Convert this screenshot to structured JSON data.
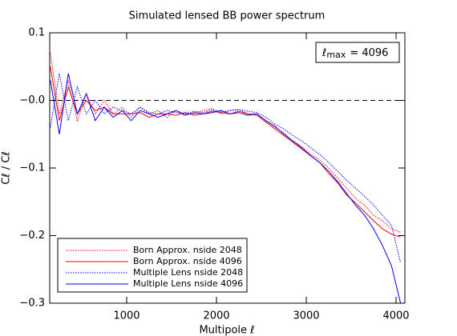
{
  "chart_data": {
    "type": "line",
    "title": "Simulated lensed BB power spectrum",
    "xlabel": "Multipole ℓ",
    "ylabel": "Cℓ / Cℓ",
    "annotation": {
      "symbol": "ℓ",
      "subscript": "max",
      "text": "= 4096"
    },
    "reference_line": 0,
    "xlim": [
      143,
      4098
    ],
    "ylim": [
      -0.3,
      0.1
    ],
    "xticks": [
      1000,
      2000,
      3000,
      4000
    ],
    "yticks": [
      {
        "value": 0.1,
        "label": "0.1"
      },
      {
        "value": 0,
        "label": "−0.0"
      },
      {
        "value": -0.1,
        "label": "−0.1"
      },
      {
        "value": -0.2,
        "label": "−0.2"
      },
      {
        "value": -0.3,
        "label": "−0.3"
      }
    ],
    "x": [
      150,
      250,
      350,
      450,
      550,
      650,
      750,
      850,
      950,
      1050,
      1150,
      1250,
      1350,
      1450,
      1550,
      1650,
      1750,
      1850,
      1950,
      2050,
      2150,
      2250,
      2350,
      2450,
      2550,
      2650,
      2750,
      2850,
      2950,
      3050,
      3150,
      3250,
      3350,
      3450,
      3550,
      3650,
      3750,
      3850,
      3950,
      4050
    ],
    "series": [
      {
        "name": "Born Approx. nside 2048",
        "color": "#ff0000",
        "style": "dotted",
        "values": [
          0.07,
          -0.02,
          0.03,
          -0.03,
          0.01,
          -0.02,
          0.0,
          -0.02,
          -0.01,
          -0.025,
          -0.01,
          -0.02,
          -0.015,
          -0.025,
          -0.015,
          -0.02,
          -0.02,
          -0.015,
          -0.012,
          -0.02,
          -0.015,
          -0.013,
          -0.02,
          -0.02,
          -0.03,
          -0.04,
          -0.048,
          -0.06,
          -0.068,
          -0.08,
          -0.088,
          -0.1,
          -0.115,
          -0.13,
          -0.145,
          -0.155,
          -0.17,
          -0.178,
          -0.19,
          -0.195
        ]
      },
      {
        "name": "Born Approx. nside 4096",
        "color": "#ff0000",
        "style": "solid",
        "values": [
          0.05,
          -0.03,
          0.02,
          -0.02,
          0.0,
          -0.015,
          -0.01,
          -0.02,
          -0.02,
          -0.02,
          -0.018,
          -0.025,
          -0.02,
          -0.02,
          -0.022,
          -0.018,
          -0.022,
          -0.02,
          -0.016,
          -0.018,
          -0.02,
          -0.016,
          -0.02,
          -0.022,
          -0.032,
          -0.042,
          -0.052,
          -0.062,
          -0.072,
          -0.082,
          -0.092,
          -0.108,
          -0.122,
          -0.14,
          -0.152,
          -0.165,
          -0.178,
          -0.19,
          -0.198,
          -0.202
        ]
      },
      {
        "name": "Multiple Lens nside 2048",
        "color": "#0000ff",
        "style": "dotted",
        "values": [
          -0.04,
          0.04,
          -0.03,
          0.02,
          -0.02,
          0.0,
          -0.02,
          -0.01,
          -0.015,
          -0.02,
          -0.01,
          -0.018,
          -0.02,
          -0.015,
          -0.018,
          -0.02,
          -0.016,
          -0.018,
          -0.014,
          -0.017,
          -0.015,
          -0.014,
          -0.016,
          -0.018,
          -0.025,
          -0.035,
          -0.042,
          -0.052,
          -0.06,
          -0.07,
          -0.08,
          -0.092,
          -0.105,
          -0.118,
          -0.13,
          -0.142,
          -0.155,
          -0.17,
          -0.185,
          -0.24
        ]
      },
      {
        "name": "Multiple Lens nside 4096",
        "color": "#0000ff",
        "style": "solid",
        "values": [
          0.03,
          -0.05,
          0.04,
          -0.02,
          0.01,
          -0.03,
          -0.01,
          -0.025,
          -0.015,
          -0.03,
          -0.015,
          -0.02,
          -0.025,
          -0.02,
          -0.015,
          -0.022,
          -0.018,
          -0.02,
          -0.018,
          -0.015,
          -0.02,
          -0.018,
          -0.022,
          -0.02,
          -0.03,
          -0.038,
          -0.05,
          -0.06,
          -0.07,
          -0.082,
          -0.092,
          -0.105,
          -0.12,
          -0.138,
          -0.155,
          -0.17,
          -0.19,
          -0.215,
          -0.245,
          -0.3
        ]
      }
    ]
  }
}
